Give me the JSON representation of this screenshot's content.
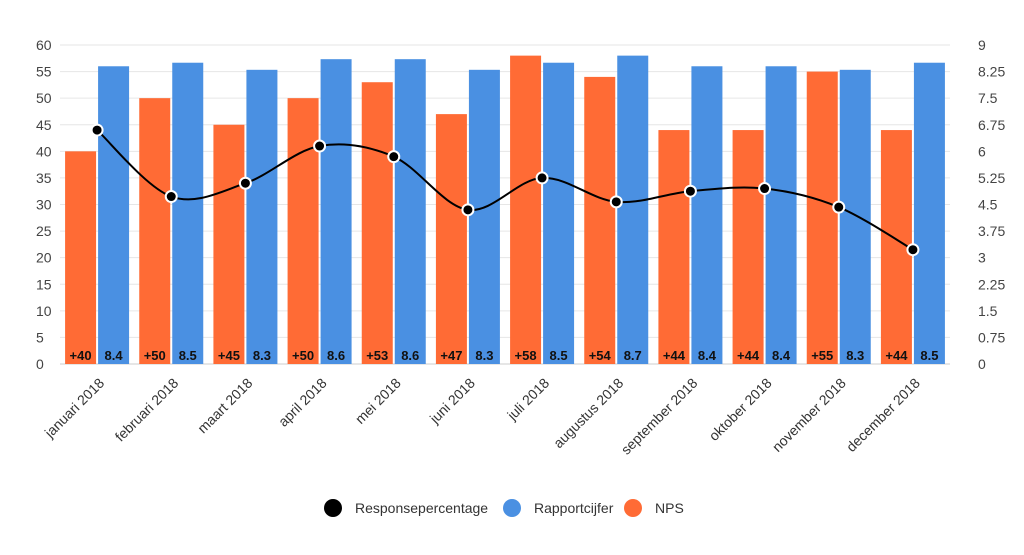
{
  "chart_data": {
    "type": "bar",
    "categories": [
      "januari 2018",
      "februari 2018",
      "maart 2018",
      "april 2018",
      "mei 2018",
      "juni 2018",
      "juli 2018",
      "augustus 2018",
      "september 2018",
      "oktober 2018",
      "november 2018",
      "december 2018"
    ],
    "series": [
      {
        "name": "NPS",
        "type": "bar",
        "axis": "left",
        "color": "#ff6b35",
        "values": [
          40,
          50,
          45,
          50,
          53,
          47,
          58,
          54,
          44,
          44,
          55,
          44
        ],
        "labels": [
          "+40",
          "+50",
          "+45",
          "+50",
          "+53",
          "+47",
          "+58",
          "+54",
          "+44",
          "+44",
          "+55",
          "+44"
        ]
      },
      {
        "name": "Rapportcijfer",
        "type": "bar",
        "axis": "right",
        "color": "#4a90e2",
        "values": [
          8.4,
          8.5,
          8.3,
          8.6,
          8.6,
          8.3,
          8.5,
          8.7,
          8.4,
          8.4,
          8.3,
          8.5
        ],
        "labels": [
          "8.4",
          "8.5",
          "8.3",
          "8.6",
          "8.6",
          "8.3",
          "8.5",
          "8.7",
          "8.4",
          "8.4",
          "8.3",
          "8.5"
        ]
      },
      {
        "name": "Responsepercentage",
        "type": "line",
        "axis": "left",
        "color": "#000000",
        "values": [
          44,
          31.5,
          34,
          41,
          39,
          29,
          35,
          30.5,
          32.5,
          33,
          29.5,
          21.5
        ]
      }
    ],
    "y_left": {
      "min": 0,
      "max": 60,
      "ticks": [
        "0",
        "5",
        "10",
        "15",
        "20",
        "25",
        "30",
        "35",
        "40",
        "45",
        "50",
        "55",
        "60"
      ]
    },
    "y_right": {
      "min": 0,
      "max": 9,
      "ticks": [
        "0",
        "0.75",
        "1.5",
        "2.25",
        "3",
        "3.75",
        "4.5",
        "5.25",
        "6",
        "6.75",
        "7.5",
        "8.25",
        "9"
      ]
    },
    "legend": {
      "position": "bottom",
      "order": [
        "Responsepercentage",
        "Rapportcijfer",
        "NPS"
      ]
    },
    "grid": true
  }
}
